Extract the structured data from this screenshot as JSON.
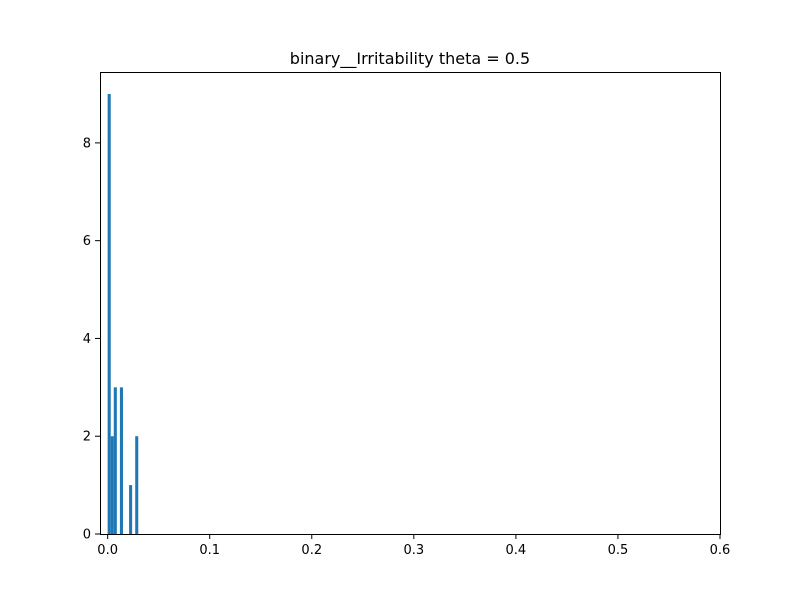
{
  "chart_data": {
    "type": "bar",
    "title": "binary__Irritability theta = 0.5",
    "xlabel": "",
    "ylabel": "",
    "xlim": [
      -0.0075,
      0.6
    ],
    "ylim": [
      0,
      9.45
    ],
    "xticks": [
      0.0,
      0.1,
      0.2,
      0.3,
      0.4,
      0.5,
      0.6
    ],
    "xtick_labels": [
      "0.0",
      "0.1",
      "0.2",
      "0.3",
      "0.4",
      "0.5",
      "0.6"
    ],
    "yticks": [
      0,
      2,
      4,
      6,
      8
    ],
    "ytick_labels": [
      "0",
      "2",
      "4",
      "6",
      "8"
    ],
    "bar_width": 0.003,
    "color": "#1f77b4",
    "grid": false,
    "bars": [
      {
        "x": 0.0015,
        "value": 9
      },
      {
        "x": 0.0045,
        "value": 2
      },
      {
        "x": 0.0075,
        "value": 3
      },
      {
        "x": 0.0135,
        "value": 3
      },
      {
        "x": 0.0225,
        "value": 1
      },
      {
        "x": 0.0285,
        "value": 2
      }
    ]
  }
}
